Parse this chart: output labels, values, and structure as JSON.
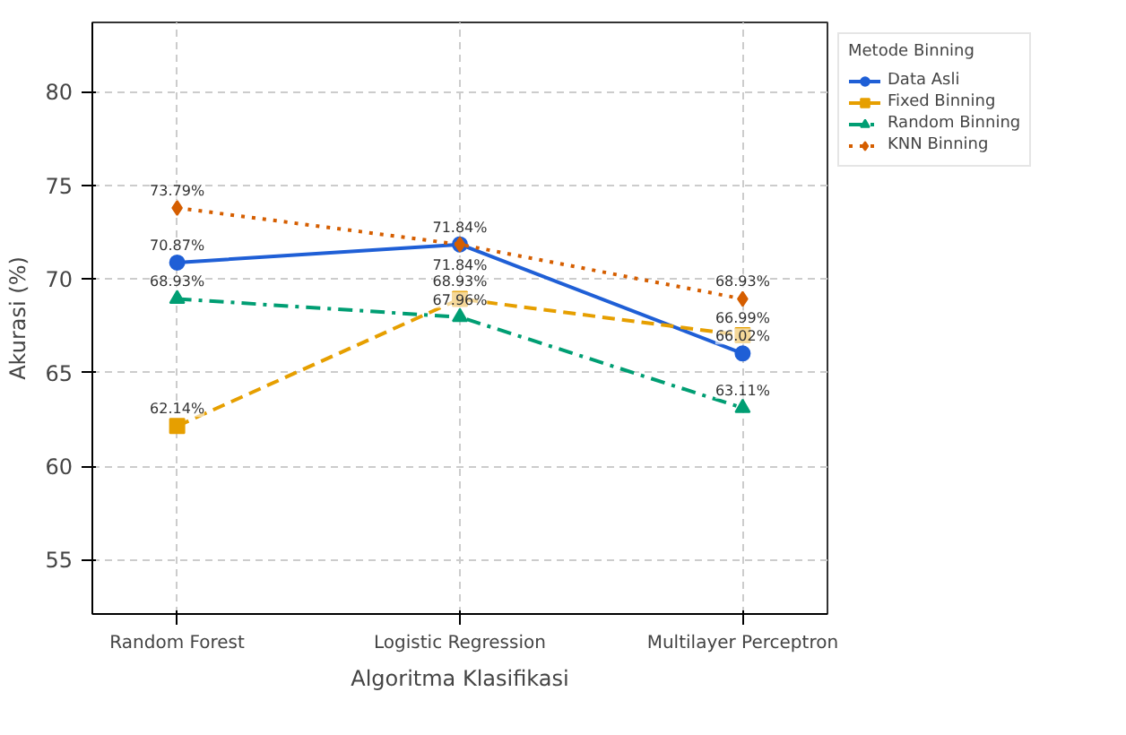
{
  "chart_data": {
    "type": "line",
    "xlabel": "Algoritma Klasifikasi",
    "ylabel": "Akurasi (%)",
    "legend_title": "Metode Binning",
    "categories": [
      "Random Forest",
      "Logistic Regression",
      "Multilayer Perceptron"
    ],
    "series": [
      {
        "name": "Data Asli",
        "color": "#1f5fd6",
        "values": [
          70.87,
          71.84,
          66.02
        ],
        "marker": "circle",
        "line_style": "solid",
        "value_labels": [
          "70.87%",
          "71.84%",
          "66.02%"
        ]
      },
      {
        "name": "Fixed Binning",
        "color": "#e69f00",
        "values": [
          62.14,
          68.93,
          66.99
        ],
        "marker": "square",
        "line_style": "dashed",
        "value_labels": [
          "62.14%",
          "68.93%",
          "66.99%"
        ]
      },
      {
        "name": "Random Binning",
        "color": "#009e73",
        "values": [
          68.93,
          67.96,
          63.11
        ],
        "marker": "triangle",
        "line_style": "dashdot",
        "value_labels": [
          "68.93%",
          "67.96%",
          "63.11%"
        ]
      },
      {
        "name": "KNN Binning",
        "color": "#d55e00",
        "values": [
          73.79,
          71.84,
          68.93
        ],
        "marker": "diamond",
        "line_style": "dotted",
        "value_labels": [
          "73.79%",
          "71.84%",
          "68.93%"
        ]
      }
    ],
    "ylim": [
      52.1,
      83.7
    ],
    "yticks": [
      55,
      60,
      65,
      70,
      75,
      80
    ],
    "grid": true,
    "legend": "right"
  }
}
